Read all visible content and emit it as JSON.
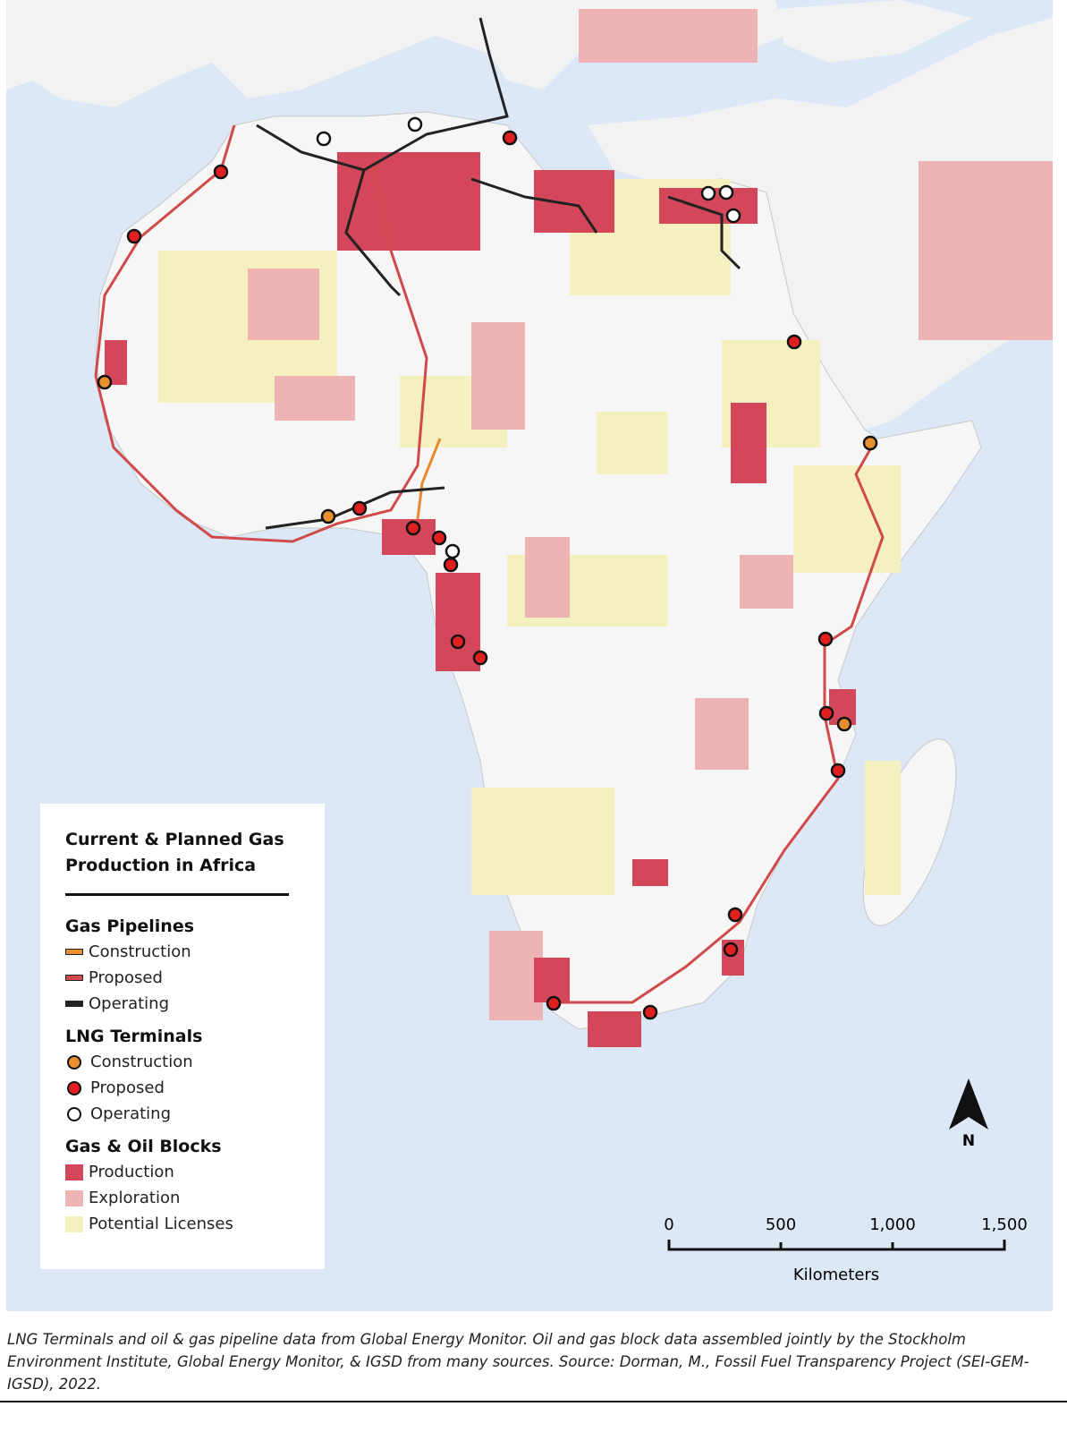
{
  "legend": {
    "title": "Current & Planned Gas Production in Africa",
    "sections": [
      {
        "title": "Gas Pipelines",
        "items": [
          "Construction",
          "Proposed",
          "Operating"
        ]
      },
      {
        "title": "LNG Terminals",
        "items": [
          "Construction",
          "Proposed",
          "Operating"
        ]
      },
      {
        "title": "Gas & Oil Blocks",
        "items": [
          "Production",
          "Exploration",
          "Potential Licenses"
        ]
      }
    ]
  },
  "scale": {
    "ticks": [
      "0",
      "500",
      "1,000",
      "1,500"
    ],
    "unit": "Kilometers"
  },
  "north": "N",
  "caption": "LNG Terminals and oil & gas pipeline data from Global Energy Monitor. Oil and gas block data assembled jointly by the Stockholm Environment Institute, Global Energy Monitor, & IGSD from many sources. Source: Dorman, M., Fossil Fuel Transparency Project (SEI-GEM-IGSD), 2022."
}
